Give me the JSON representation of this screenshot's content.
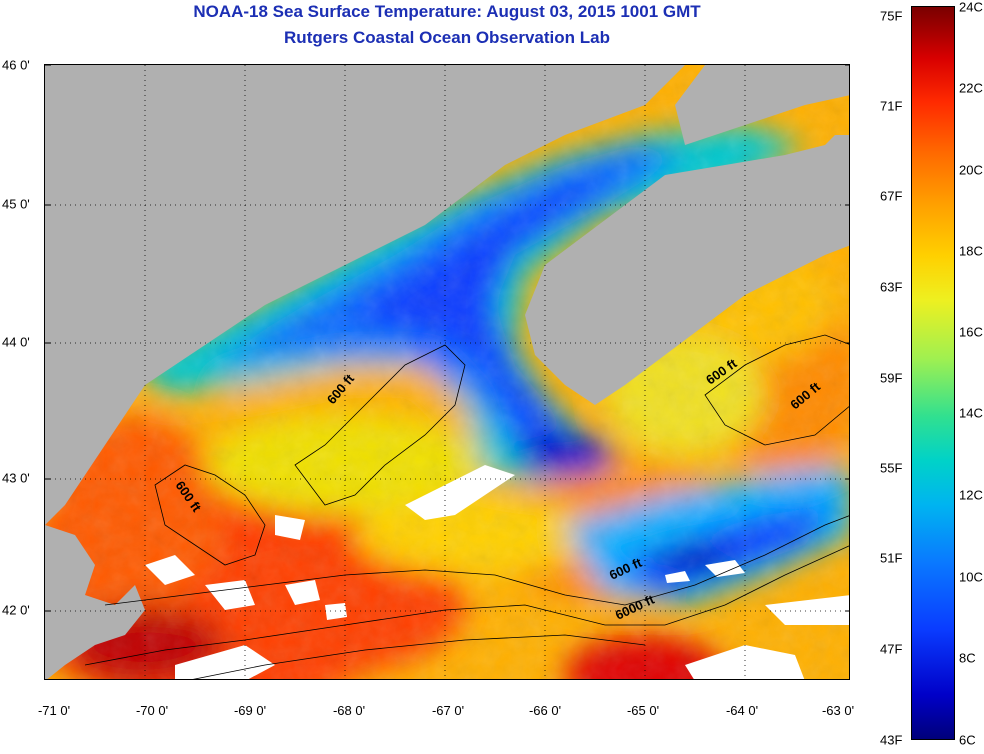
{
  "header": {
    "title": "NOAA-18 Sea Surface Temperature:  August 03, 2015 1001 GMT",
    "subtitle": "Rutgers Coastal Ocean Observation Lab"
  },
  "map": {
    "x_ticks": [
      "-71 0'",
      "-70 0'",
      "-69 0'",
      "-68 0'",
      "-67 0'",
      "-66 0'",
      "-65 0'",
      "-64 0'",
      "-63 0'"
    ],
    "y_ticks": [
      "46 0'",
      "45 0'",
      "44 0'",
      "43 0'",
      "42 0'"
    ],
    "contour_labels": [
      "600 ft",
      "600 ft",
      "600 ft",
      "600 ft",
      "600 ft",
      "6000 ft"
    ],
    "colors": {
      "land": "#b0b0b0",
      "no_data": "#ffffff",
      "cold": "#0a3cff",
      "warm": "#ff4a00"
    }
  },
  "colorbar": {
    "fahrenheit": [
      "75F",
      "71F",
      "67F",
      "63F",
      "59F",
      "55F",
      "51F",
      "47F",
      "43F"
    ],
    "celsius": [
      "24C",
      "22C",
      "20C",
      "18C",
      "16C",
      "14C",
      "12C",
      "10C",
      "8C",
      "6C"
    ]
  }
}
